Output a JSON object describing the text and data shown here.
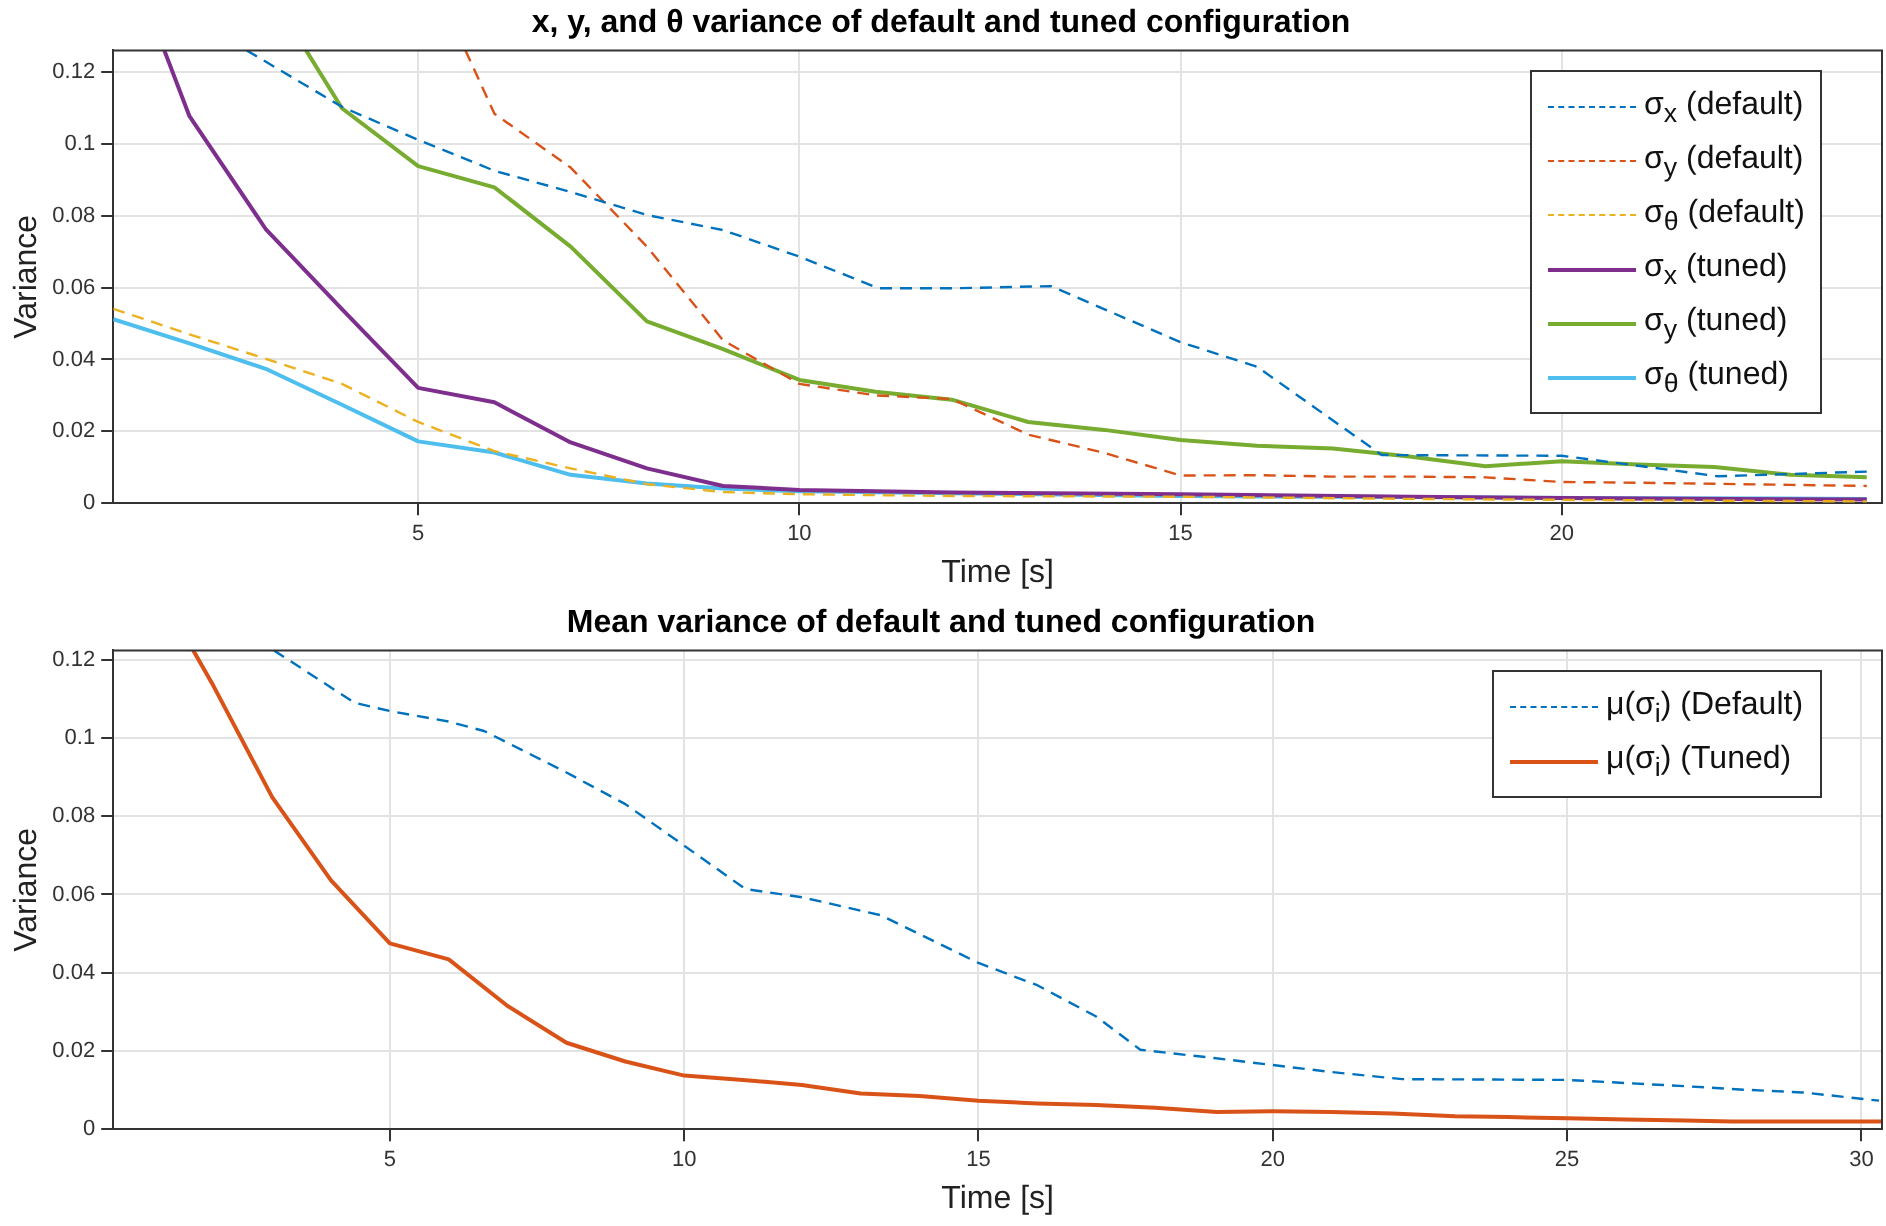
{
  "chart_data": [
    {
      "type": "line",
      "title": "x, y, and θ variance of default and tuned configuration",
      "xlabel": "Time [s]",
      "ylabel": "Variance",
      "xlim": [
        1,
        24.2
      ],
      "xticks": [
        5,
        10,
        15,
        20
      ],
      "ylim": [
        0,
        0.126
      ],
      "yticks": [
        0,
        0.02,
        0.04,
        0.06,
        0.08,
        0.1,
        0.12
      ],
      "grid": true,
      "legend": "top right",
      "marker": "none",
      "series": [
        {
          "name": "σ$_{x}$ (default)",
          "color": "#0072bd",
          "line_style": "dashed",
          "x": [
            2.75,
            4,
            5,
            6,
            7,
            8,
            9,
            10,
            11.04,
            12,
            13.3,
            15,
            16,
            17.64,
            20,
            22.05,
            24
          ],
          "values": [
            0.126,
            0.1103,
            0.1011,
            0.0925,
            0.0866,
            0.0802,
            0.076,
            0.0686,
            0.0598,
            0.0598,
            0.0604,
            0.0448,
            0.038,
            0.0134,
            0.0132,
            0.0075,
            0.0088
          ]
        },
        {
          "name": "σ$_{y}$ (default)",
          "color": "#d95319",
          "line_style": "dashed",
          "x": [
            5.62,
            6,
            7,
            8,
            9,
            10,
            11,
            12,
            13,
            14,
            15,
            16,
            17,
            18,
            19,
            20,
            21,
            22,
            23,
            24
          ],
          "values": [
            0.126,
            0.1084,
            0.0934,
            0.0714,
            0.0453,
            0.0332,
            0.03,
            0.029,
            0.0191,
            0.014,
            0.0077,
            0.0078,
            0.0074,
            0.0074,
            0.0072,
            0.0059,
            0.0057,
            0.0054,
            0.0051,
            0.0048
          ]
        },
        {
          "name": "σ$_{θ}$ (default)",
          "color": "#edb120",
          "line_style": "dashed",
          "x": [
            1,
            2,
            3,
            4,
            5,
            6,
            7,
            8,
            9,
            10,
            12,
            15,
            18,
            21,
            24
          ],
          "values": [
            0.0541,
            0.047,
            0.0402,
            0.0332,
            0.0226,
            0.0145,
            0.0097,
            0.0053,
            0.0031,
            0.0025,
            0.002,
            0.0018,
            0.0012,
            0.0008,
            0.0005
          ]
        },
        {
          "name": "σ$_{x}$ (tuned)",
          "color": "#7e2f8e",
          "line_style": "solid",
          "x": [
            1.67,
            2,
            3,
            4,
            5,
            6,
            7,
            8,
            9,
            10,
            12,
            15,
            18,
            21,
            24
          ],
          "values": [
            0.126,
            0.1077,
            0.0763,
            0.054,
            0.0321,
            0.0281,
            0.0169,
            0.0097,
            0.0048,
            0.0037,
            0.003,
            0.0025,
            0.0018,
            0.0013,
            0.001
          ]
        },
        {
          "name": "σ$_{y}$ (tuned)",
          "color": "#77ac30",
          "line_style": "solid",
          "x": [
            3.53,
            4,
            5,
            6,
            7,
            8,
            9,
            10,
            11,
            12,
            13,
            14,
            15,
            16,
            17,
            18,
            19,
            20,
            21,
            22,
            23,
            24
          ],
          "values": [
            0.126,
            0.1099,
            0.0938,
            0.0879,
            0.0714,
            0.0506,
            0.0429,
            0.0343,
            0.031,
            0.0288,
            0.0226,
            0.0204,
            0.0176,
            0.016,
            0.0152,
            0.013,
            0.0103,
            0.0117,
            0.0108,
            0.0101,
            0.0079,
            0.0072
          ]
        },
        {
          "name": "σ$_{θ}$ (tuned)",
          "color": "#4dbeee",
          "line_style": "solid",
          "x": [
            1,
            2,
            3,
            4,
            5,
            6,
            7,
            8,
            9,
            10,
            12,
            15,
            18,
            21,
            24
          ],
          "values": [
            0.0512,
            0.0445,
            0.0374,
            0.0274,
            0.0172,
            0.0141,
            0.0079,
            0.0055,
            0.0041,
            0.0033,
            0.0028,
            0.002,
            0.0017,
            0.0014,
            0.0012
          ]
        }
      ]
    },
    {
      "type": "line",
      "title": "Mean variance of default and tuned configuration",
      "xlabel": "Time [s]",
      "ylabel": "Variance",
      "xlim": [
        0.3,
        30.35
      ],
      "xticks": [
        5,
        10,
        15,
        20,
        25,
        30
      ],
      "ylim": [
        0,
        0.1224
      ],
      "yticks": [
        0,
        0.02,
        0.04,
        0.06,
        0.08,
        0.1,
        0.12
      ],
      "grid": true,
      "legend": "top right",
      "marker": "none",
      "series": [
        {
          "name": "μ(σ$_{i}$) (Default)",
          "color": "#0072bd",
          "line_style": "dashed",
          "x": [
            3.03,
            4.4,
            5,
            6,
            6.6,
            8,
            9,
            10,
            11.04,
            12,
            13.34,
            15,
            16,
            17,
            17.75,
            19,
            20,
            21,
            22.2,
            25,
            26,
            27,
            28,
            29,
            30.3
          ],
          "values": [
            0.1224,
            0.109,
            0.1069,
            0.1042,
            0.1018,
            0.0912,
            0.0831,
            0.0725,
            0.0614,
            0.0593,
            0.0547,
            0.0425,
            0.0368,
            0.0288,
            0.0203,
            0.0182,
            0.0164,
            0.0146,
            0.0128,
            0.0126,
            0.0118,
            0.011,
            0.0101,
            0.0094,
            0.0073
          ]
        },
        {
          "name": "μ(σ$_{i}$) (Tuned)",
          "color": "#d95319",
          "line_style": "solid",
          "x": [
            1.66,
            2,
            3,
            4,
            5,
            6,
            7,
            8,
            9,
            10,
            11,
            12,
            13,
            14,
            15,
            16,
            17,
            18,
            19.05,
            20,
            21,
            22.03,
            23.1,
            24,
            25,
            26,
            27,
            27.8,
            29,
            30.35
          ],
          "values": [
            0.1224,
            0.1134,
            0.0849,
            0.0636,
            0.0475,
            0.0434,
            0.0315,
            0.0221,
            0.0173,
            0.0137,
            0.0126,
            0.0113,
            0.0091,
            0.0085,
            0.0073,
            0.0066,
            0.0062,
            0.0055,
            0.0044,
            0.0046,
            0.0044,
            0.004,
            0.0033,
            0.0031,
            0.0028,
            0.0025,
            0.0022,
            0.002,
            0.002,
            0.002
          ]
        }
      ]
    }
  ]
}
